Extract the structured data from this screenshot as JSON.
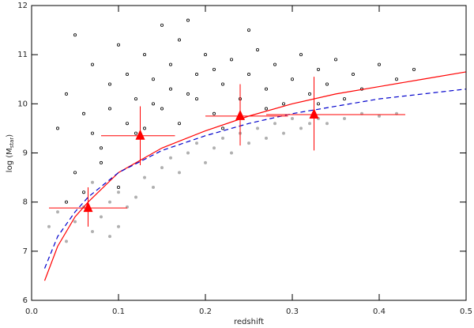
{
  "chart_data": {
    "type": "scatter",
    "xlabel": "redshift",
    "ylabel": [
      "log (M",
      "star",
      ")"
    ],
    "xlim": [
      0,
      0.5
    ],
    "ylim": [
      6,
      12
    ],
    "xticks": [
      {
        "value": 0,
        "label": "0.0"
      },
      0.1,
      0.2,
      0.3,
      0.4,
      0.5
    ],
    "yticks": [
      6,
      7,
      8,
      9,
      10,
      11,
      12
    ],
    "series": [
      {
        "marker": "open-circle",
        "color": "#000000",
        "x": [
          0.03,
          0.04,
          0.05,
          0.06,
          0.07,
          0.08,
          0.09,
          0.1,
          0.11,
          0.12,
          0.13,
          0.14,
          0.15,
          0.16,
          0.17,
          0.18,
          0.19,
          0.2,
          0.21,
          0.22,
          0.23,
          0.24,
          0.25,
          0.26,
          0.27,
          0.28,
          0.29,
          0.3,
          0.31,
          0.32,
          0.33,
          0.34,
          0.35,
          0.36,
          0.37,
          0.38,
          0.4,
          0.42,
          0.44,
          0.06,
          0.08,
          0.12,
          0.15,
          0.1,
          0.04,
          0.05,
          0.18,
          0.25,
          0.13,
          0.17,
          0.22,
          0.14,
          0.19,
          0.21,
          0.11,
          0.09,
          0.07,
          0.16,
          0.27,
          0.33
        ],
        "y": [
          9.5,
          10.2,
          8.6,
          9.8,
          10.8,
          9.1,
          10.4,
          11.2,
          9.6,
          10.1,
          11.0,
          10.5,
          9.9,
          10.8,
          11.3,
          10.2,
          10.6,
          11.0,
          9.8,
          10.4,
          10.9,
          10.1,
          10.6,
          11.1,
          10.3,
          10.8,
          10.0,
          10.5,
          11.0,
          10.2,
          10.7,
          10.4,
          10.9,
          10.1,
          10.6,
          10.3,
          10.8,
          10.5,
          10.7,
          8.2,
          8.8,
          9.4,
          11.6,
          8.3,
          8.0,
          11.4,
          11.7,
          11.5,
          9.5,
          9.6,
          9.5,
          10.0,
          10.1,
          10.7,
          10.6,
          9.9,
          9.4,
          10.3,
          9.9,
          10.0
        ]
      },
      {
        "marker": "filled-circle",
        "color": "#b0b0b0",
        "x": [
          0.02,
          0.03,
          0.04,
          0.05,
          0.06,
          0.07,
          0.08,
          0.09,
          0.1,
          0.11,
          0.1,
          0.12,
          0.13,
          0.14,
          0.15,
          0.16,
          0.17,
          0.18,
          0.19,
          0.2,
          0.21,
          0.22,
          0.23,
          0.24,
          0.25,
          0.26,
          0.27,
          0.28,
          0.29,
          0.3,
          0.31,
          0.32,
          0.33,
          0.34,
          0.36,
          0.38,
          0.4,
          0.42,
          0.07,
          0.09
        ],
        "y": [
          7.5,
          7.8,
          7.2,
          7.6,
          7.9,
          7.4,
          7.7,
          8.0,
          7.5,
          7.9,
          8.2,
          8.1,
          8.5,
          8.3,
          8.7,
          8.9,
          8.6,
          9.0,
          9.2,
          8.8,
          9.1,
          9.3,
          9.0,
          9.4,
          9.2,
          9.5,
          9.3,
          9.6,
          9.4,
          9.7,
          9.5,
          9.6,
          9.7,
          9.6,
          9.7,
          9.8,
          9.75,
          9.8,
          8.4,
          7.3
        ]
      },
      {
        "marker": "line",
        "color": "#ff0000",
        "x": [
          0.015,
          0.03,
          0.05,
          0.065,
          0.1,
          0.15,
          0.2,
          0.25,
          0.3,
          0.35,
          0.4,
          0.45,
          0.5
        ],
        "y": [
          6.4,
          7.1,
          7.7,
          8.0,
          8.6,
          9.1,
          9.45,
          9.75,
          10.0,
          10.2,
          10.35,
          10.5,
          10.65
        ]
      },
      {
        "marker": "dashed-line",
        "color": "#0000cc",
        "x": [
          0.015,
          0.03,
          0.05,
          0.065,
          0.1,
          0.15,
          0.2,
          0.25,
          0.3,
          0.35,
          0.4,
          0.45,
          0.5
        ],
        "y": [
          6.65,
          7.3,
          7.8,
          8.1,
          8.6,
          9.05,
          9.35,
          9.6,
          9.8,
          9.95,
          10.1,
          10.2,
          10.3
        ]
      },
      {
        "marker": "triangle",
        "color": "#ff0000",
        "x": [
          0.065,
          0.125,
          0.24,
          0.325
        ],
        "y": [
          7.88,
          9.35,
          9.75,
          9.78
        ],
        "xmin": [
          0.02,
          0.08,
          0.2,
          0.27
        ],
        "xmax": [
          0.11,
          0.165,
          0.295,
          0.43
        ],
        "ymin": [
          7.5,
          8.75,
          9.15,
          9.05
        ],
        "ymax": [
          8.3,
          9.95,
          10.4,
          10.55
        ]
      }
    ]
  }
}
